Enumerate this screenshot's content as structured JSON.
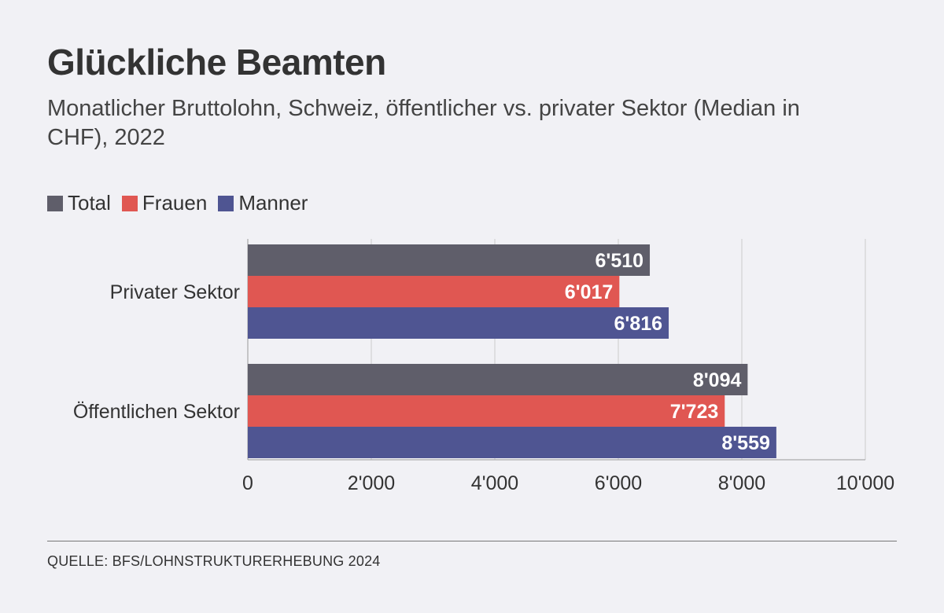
{
  "colors": {
    "total": "#5f5e6a",
    "frauen": "#e05752",
    "maenner": "#4f5592",
    "grid": "#cccccc",
    "axis": "#999999"
  },
  "chart_data": {
    "type": "bar",
    "orientation": "horizontal",
    "title": "Glückliche Beamten",
    "subtitle": "Monatlicher Bruttolohn, Schweiz, öffentlicher vs. privater Sektor (Median in CHF), 2022",
    "categories": [
      "Privater Sektor",
      "Öffentlichen Sektor"
    ],
    "series": [
      {
        "name": "Total",
        "color_key": "total",
        "values": [
          6510,
          8094
        ],
        "labels": [
          "6'510",
          "8'094"
        ]
      },
      {
        "name": "Frauen",
        "color_key": "frauen",
        "values": [
          6017,
          7723
        ],
        "labels": [
          "6'017",
          "7'723"
        ]
      },
      {
        "name": "Manner",
        "color_key": "maenner",
        "values": [
          6816,
          8559
        ],
        "labels": [
          "6'816",
          "8'559"
        ]
      }
    ],
    "xlim": [
      0,
      10000
    ],
    "xticks": [
      0,
      2000,
      4000,
      6000,
      8000,
      10000
    ],
    "xtick_labels": [
      "0",
      "2'000",
      "4'000",
      "6'000",
      "8'000",
      "10'000"
    ],
    "grid": true,
    "legend_position": "top-left",
    "source": "QUELLE: BFS/LOHNSTRUKTURERHEBUNG 2024"
  }
}
